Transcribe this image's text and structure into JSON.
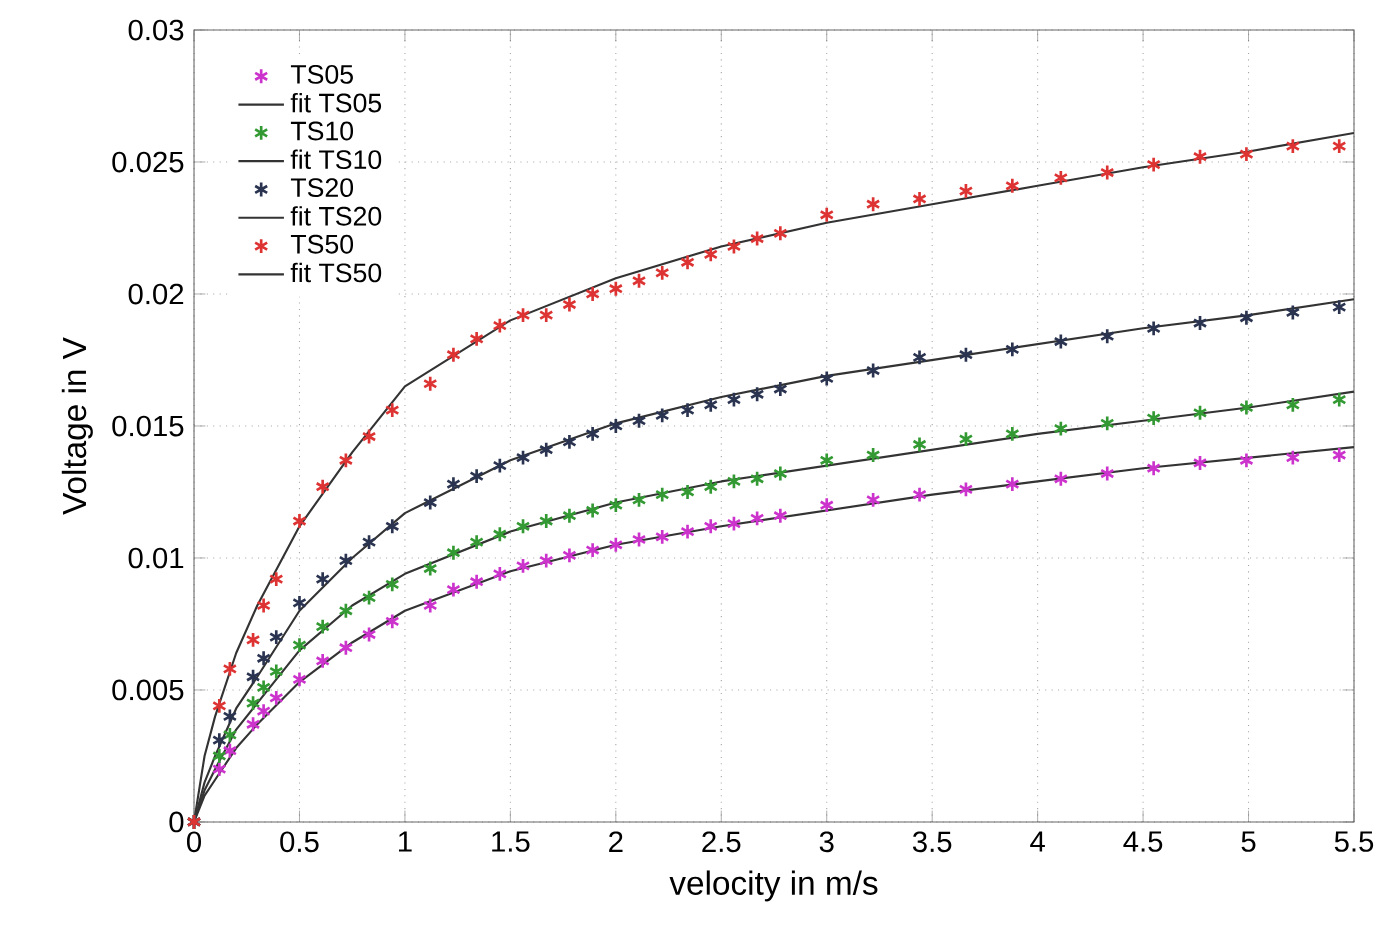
{
  "chart_data": {
    "type": "scatter",
    "xlabel": "velocity in m/s",
    "ylabel": "Voltage in V",
    "xlim": [
      0,
      5.5
    ],
    "ylim": [
      0,
      0.03
    ],
    "xticks": [
      0,
      0.5,
      1,
      1.5,
      2,
      2.5,
      3,
      3.5,
      4,
      4.5,
      5,
      5.5
    ],
    "yticks": [
      0,
      0.005,
      0.01,
      0.015,
      0.02,
      0.025,
      0.03
    ],
    "grid": true,
    "legend": "top left",
    "x": [
      0,
      0.12,
      0.17,
      0.28,
      0.33,
      0.39,
      0.5,
      0.61,
      0.72,
      0.83,
      0.94,
      1.12,
      1.23,
      1.34,
      1.45,
      1.56,
      1.67,
      1.78,
      1.89,
      2.0,
      2.11,
      2.22,
      2.34,
      2.45,
      2.56,
      2.67,
      2.78,
      3.0,
      3.22,
      3.44,
      3.66,
      3.88,
      4.11,
      4.33,
      4.55,
      4.77,
      4.99,
      5.21,
      5.43
    ],
    "series": [
      {
        "name": "TS05",
        "marker": "cross",
        "color": "#cc33cc",
        "values": [
          0,
          0.002,
          0.0027,
          0.0037,
          0.0042,
          0.0047,
          0.0054,
          0.0061,
          0.0066,
          0.0071,
          0.0076,
          0.0082,
          0.0088,
          0.0091,
          0.0094,
          0.0097,
          0.0099,
          0.0101,
          0.0103,
          0.0105,
          0.0107,
          0.0108,
          0.011,
          0.0112,
          0.0113,
          0.0115,
          0.0116,
          0.012,
          0.0122,
          0.0124,
          0.0126,
          0.0128,
          0.013,
          0.0132,
          0.0134,
          0.0136,
          0.0137,
          0.0138,
          0.0139
        ]
      },
      {
        "name": "fit TS05",
        "type": "line",
        "color": "#333333",
        "x": [
          0,
          0.05,
          0.1,
          0.2,
          0.3,
          0.5,
          0.75,
          1,
          1.5,
          2,
          2.5,
          3,
          3.5,
          4,
          4.5,
          5,
          5.5
        ],
        "values": [
          0,
          0.001,
          0.0016,
          0.0028,
          0.0037,
          0.0053,
          0.0068,
          0.008,
          0.0095,
          0.0105,
          0.0112,
          0.0118,
          0.0124,
          0.0129,
          0.0134,
          0.0138,
          0.0142
        ]
      },
      {
        "name": "TS10",
        "marker": "cross",
        "color": "#339933",
        "values": [
          0,
          0.0025,
          0.0033,
          0.0045,
          0.0051,
          0.0057,
          0.0067,
          0.0074,
          0.008,
          0.0085,
          0.009,
          0.0096,
          0.0102,
          0.0106,
          0.0109,
          0.0112,
          0.0114,
          0.0116,
          0.0118,
          0.012,
          0.0122,
          0.0124,
          0.0125,
          0.0127,
          0.0129,
          0.013,
          0.0132,
          0.0137,
          0.0139,
          0.0143,
          0.0145,
          0.0147,
          0.0149,
          0.0151,
          0.0153,
          0.0155,
          0.0157,
          0.0158,
          0.016
        ]
      },
      {
        "name": "fit TS10",
        "type": "line",
        "color": "#333333",
        "x": [
          0,
          0.05,
          0.1,
          0.2,
          0.3,
          0.5,
          0.75,
          1,
          1.5,
          2,
          2.5,
          3,
          3.5,
          4,
          4.5,
          5,
          5.5
        ],
        "values": [
          0,
          0.0012,
          0.002,
          0.0035,
          0.0045,
          0.0065,
          0.0082,
          0.0094,
          0.011,
          0.0121,
          0.0129,
          0.0135,
          0.0141,
          0.0147,
          0.0152,
          0.0157,
          0.0163
        ]
      },
      {
        "name": "TS20",
        "marker": "cross",
        "color": "#2a3450",
        "values": [
          0,
          0.0031,
          0.004,
          0.0055,
          0.0062,
          0.007,
          0.0083,
          0.0092,
          0.0099,
          0.0106,
          0.0112,
          0.0121,
          0.0128,
          0.0131,
          0.0135,
          0.0138,
          0.0141,
          0.0144,
          0.0147,
          0.015,
          0.0152,
          0.0154,
          0.0156,
          0.0158,
          0.016,
          0.0162,
          0.0164,
          0.0168,
          0.0171,
          0.0176,
          0.0177,
          0.0179,
          0.0182,
          0.0184,
          0.0187,
          0.0189,
          0.0191,
          0.0193,
          0.0195
        ]
      },
      {
        "name": "fit TS20",
        "type": "line",
        "color": "#333333",
        "x": [
          0,
          0.05,
          0.1,
          0.2,
          0.3,
          0.5,
          0.75,
          1,
          1.5,
          2,
          2.5,
          3,
          3.5,
          4,
          4.5,
          5,
          5.5
        ],
        "values": [
          0,
          0.0015,
          0.0025,
          0.0043,
          0.0055,
          0.008,
          0.01,
          0.0117,
          0.0137,
          0.0151,
          0.0161,
          0.0169,
          0.0175,
          0.0181,
          0.0187,
          0.0192,
          0.0198
        ]
      },
      {
        "name": "TS50",
        "marker": "cross",
        "color": "#dd3333",
        "values": [
          0,
          0.0044,
          0.0058,
          0.0069,
          0.0082,
          0.0092,
          0.0114,
          0.0127,
          0.0137,
          0.0146,
          0.0156,
          0.0166,
          0.0177,
          0.0183,
          0.0188,
          0.0192,
          0.0192,
          0.0196,
          0.02,
          0.0202,
          0.0205,
          0.0208,
          0.0212,
          0.0215,
          0.0218,
          0.0221,
          0.0223,
          0.023,
          0.0234,
          0.0236,
          0.0239,
          0.0241,
          0.0244,
          0.0246,
          0.0249,
          0.0252,
          0.0253,
          0.0256,
          0.0256
        ]
      },
      {
        "name": "fit TS50",
        "type": "line",
        "color": "#333333",
        "x": [
          0,
          0.05,
          0.1,
          0.2,
          0.3,
          0.5,
          0.75,
          1,
          1.5,
          2,
          2.5,
          3,
          3.5,
          4,
          4.5,
          5,
          5.5
        ],
        "values": [
          0,
          0.0025,
          0.004,
          0.0064,
          0.0082,
          0.0112,
          0.014,
          0.0165,
          0.019,
          0.0206,
          0.0218,
          0.0227,
          0.0234,
          0.0241,
          0.0248,
          0.0254,
          0.0261
        ]
      }
    ]
  }
}
